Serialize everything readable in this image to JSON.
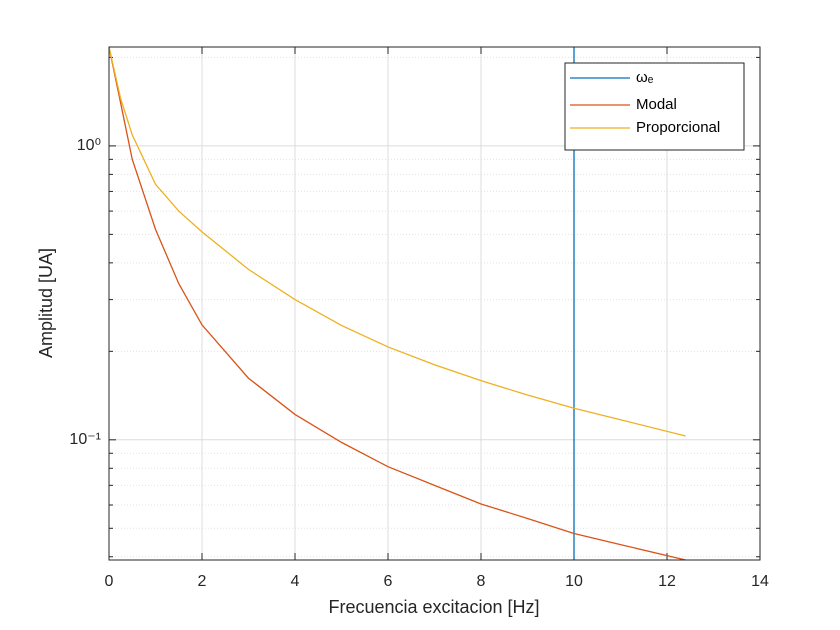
{
  "chart_data": {
    "type": "line",
    "xlabel": "Frecuencia excitacion [Hz]",
    "ylabel": "Amplitud [UA]",
    "yscale": "log",
    "grid": true,
    "legend_position": "top-right",
    "xlim": [
      0,
      14
    ],
    "xticks": [
      0,
      2,
      4,
      6,
      8,
      10,
      12,
      14
    ],
    "ylim": [
      0.039,
      2.17
    ],
    "yticks": [
      {
        "value": 0.1,
        "label": "10⁻¹"
      },
      {
        "value": 1,
        "label": "10⁰"
      }
    ],
    "yminorticks": [
      0.04,
      0.05,
      0.06,
      0.07,
      0.08,
      0.09,
      0.2,
      0.3,
      0.4,
      0.5,
      0.6,
      0.7,
      0.8,
      0.9,
      2
    ],
    "series": [
      {
        "name": "ωₑ",
        "color": "#0072bd",
        "x": [
          10,
          10
        ],
        "values": [
          0.039,
          2.17
        ]
      },
      {
        "name": "Modal",
        "color": "#d95319",
        "x": [
          0,
          0.25,
          0.5,
          1,
          1.5,
          2,
          3,
          4,
          5,
          6,
          7,
          8,
          9,
          10,
          11,
          12.4
        ],
        "values": [
          2.17,
          1.4,
          0.9,
          0.52,
          0.34,
          0.246,
          0.162,
          0.122,
          0.098,
          0.081,
          0.07,
          0.0605,
          0.054,
          0.048,
          0.044,
          0.039
        ]
      },
      {
        "name": "Proporcional",
        "color": "#edb120",
        "x": [
          0,
          0.25,
          0.5,
          1,
          1.5,
          2,
          3,
          4,
          5,
          6,
          7,
          8,
          9,
          10,
          11,
          12.4
        ],
        "values": [
          2.17,
          1.45,
          1.09,
          0.74,
          0.6,
          0.51,
          0.38,
          0.3,
          0.245,
          0.207,
          0.18,
          0.159,
          0.142,
          0.128,
          0.117,
          0.103
        ]
      }
    ]
  }
}
